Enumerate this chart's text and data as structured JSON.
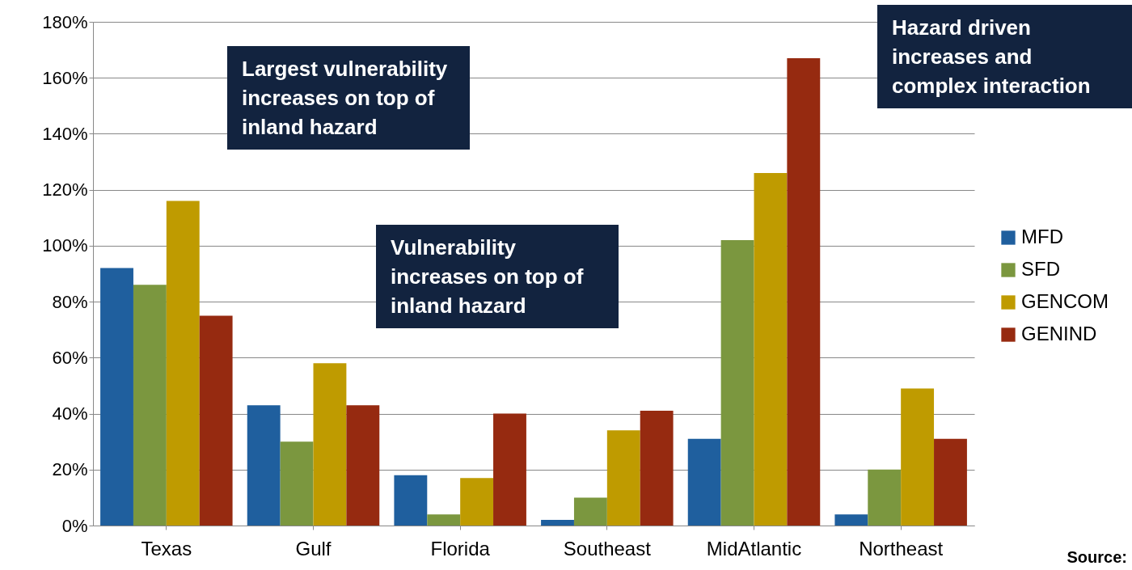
{
  "chart_data": {
    "type": "bar",
    "categories": [
      "Texas",
      "Gulf",
      "Florida",
      "Southeast",
      "MidAtlantic",
      "Northeast"
    ],
    "series": [
      {
        "name": "MFD",
        "color": "#1f5f9e",
        "values": [
          92,
          43,
          18,
          2,
          31,
          4
        ]
      },
      {
        "name": "SFD",
        "color": "#7b973f",
        "values": [
          86,
          30,
          4,
          10,
          102,
          20
        ]
      },
      {
        "name": "GENCOM",
        "color": "#bf9b00",
        "values": [
          116,
          58,
          17,
          34,
          126,
          49
        ]
      },
      {
        "name": "GENIND",
        "color": "#962a10",
        "values": [
          75,
          43,
          40,
          41,
          167,
          31
        ]
      }
    ],
    "ylim": [
      0,
      180
    ],
    "yticks": [
      {
        "value": 0,
        "label": "0%"
      },
      {
        "value": 20,
        "label": "20%"
      },
      {
        "value": 40,
        "label": "40%"
      },
      {
        "value": 60,
        "label": "60%"
      },
      {
        "value": 80,
        "label": "80%"
      },
      {
        "value": 100,
        "label": "100%"
      },
      {
        "value": 120,
        "label": "120%"
      },
      {
        "value": 140,
        "label": "140%"
      },
      {
        "value": 160,
        "label": "160%"
      },
      {
        "value": 180,
        "label": "180%"
      }
    ],
    "grid": "y",
    "legend": "right",
    "annotations": [
      "Largest vulnerability increases on top of inland hazard",
      "Vulnerability increases on top of inland hazard",
      "Hazard driven increases and complex interaction",
      "Source:"
    ]
  }
}
